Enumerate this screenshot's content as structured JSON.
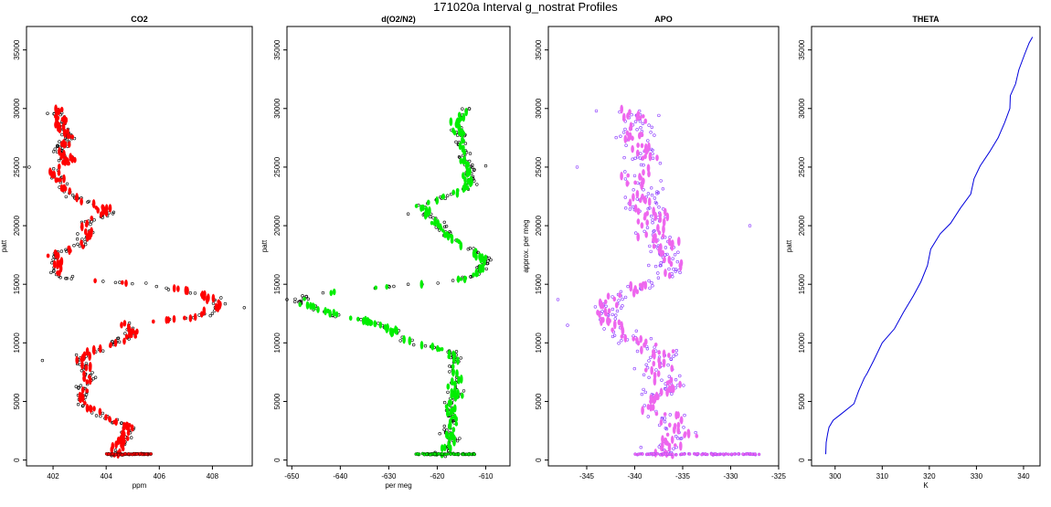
{
  "figure": {
    "title": "171020a   Interval g_nostrat Profiles"
  },
  "chart_data": [
    {
      "type": "scatter",
      "title": "CO2",
      "xlabel": "ppm",
      "ylabel": "patt",
      "xlim": [
        401,
        409.5
      ],
      "ylim": [
        -500,
        37000
      ],
      "xticks": [
        402,
        404,
        406,
        408
      ],
      "yticks": [
        0,
        5000,
        10000,
        15000,
        20000,
        25000,
        30000,
        35000
      ],
      "grid": false,
      "marker_color": "#ff0000",
      "marker_outline": "#000000",
      "profile": [
        [
          0,
          404.2
        ],
        [
          600,
          404.4
        ],
        [
          1000,
          404.3
        ],
        [
          1500,
          404.7
        ],
        [
          2000,
          404.6
        ],
        [
          2500,
          404.9
        ],
        [
          3000,
          404.7
        ],
        [
          3600,
          403.9
        ],
        [
          4200,
          403.6
        ],
        [
          4800,
          403.1
        ],
        [
          5500,
          403.2
        ],
        [
          6200,
          403.0
        ],
        [
          7000,
          403.4
        ],
        [
          7800,
          403.3
        ],
        [
          8500,
          403.0
        ],
        [
          9200,
          403.3
        ],
        [
          9800,
          404.2
        ],
        [
          10400,
          404.8
        ],
        [
          11000,
          405.1
        ],
        [
          11600,
          404.6
        ],
        [
          12200,
          407.5
        ],
        [
          12800,
          408.0
        ],
        [
          13300,
          408.2
        ],
        [
          13800,
          408.0
        ],
        [
          14400,
          407.2
        ],
        [
          15000,
          405.3
        ],
        [
          15500,
          402.5
        ],
        [
          16200,
          402.0
        ],
        [
          16900,
          402.3
        ],
        [
          17500,
          402.0
        ],
        [
          18200,
          403.0
        ],
        [
          18900,
          403.2
        ],
        [
          19600,
          403.4
        ],
        [
          20300,
          403.3
        ],
        [
          21000,
          404.1
        ],
        [
          21700,
          403.8
        ],
        [
          22300,
          402.9
        ],
        [
          23000,
          402.5
        ],
        [
          23700,
          402.2
        ],
        [
          24400,
          402.0
        ],
        [
          25000,
          402.4
        ],
        [
          25700,
          402.6
        ],
        [
          26400,
          402.3
        ],
        [
          27000,
          402.4
        ],
        [
          27700,
          402.6
        ],
        [
          28400,
          402.2
        ],
        [
          29000,
          402.3
        ],
        [
          29600,
          402.1
        ],
        [
          30000,
          402.2
        ]
      ],
      "spread": 0.35,
      "surface_line": {
        "y": 500,
        "x_range": [
          404.0,
          405.7
        ]
      },
      "outliers": [
        [
          25000,
          401.1
        ],
        [
          13000,
          409.2
        ],
        [
          15100,
          405.5
        ],
        [
          8500,
          401.6
        ]
      ]
    },
    {
      "type": "scatter",
      "title": "d(O2/N2)",
      "xlabel": "per meg",
      "ylabel": "patt",
      "xlim": [
        -651,
        -605
      ],
      "ylim": [
        -500,
        37000
      ],
      "xticks": [
        -650,
        -640,
        -630,
        -620,
        -610
      ],
      "yticks": [
        0,
        5000,
        10000,
        15000,
        20000,
        25000,
        30000,
        35000
      ],
      "grid": false,
      "marker_color": "#00ee00",
      "marker_outline": "#000000",
      "profile": [
        [
          0,
          -618
        ],
        [
          600,
          -619
        ],
        [
          1200,
          -618
        ],
        [
          1800,
          -617
        ],
        [
          2500,
          -618
        ],
        [
          3200,
          -617
        ],
        [
          4000,
          -617
        ],
        [
          4800,
          -618
        ],
        [
          5500,
          -616
        ],
        [
          6300,
          -617
        ],
        [
          7000,
          -616
        ],
        [
          7800,
          -617
        ],
        [
          8500,
          -616
        ],
        [
          9300,
          -617
        ],
        [
          10000,
          -626
        ],
        [
          10600,
          -627
        ],
        [
          11200,
          -630
        ],
        [
          11800,
          -634
        ],
        [
          12400,
          -641
        ],
        [
          13000,
          -645
        ],
        [
          13500,
          -649
        ],
        [
          14000,
          -647
        ],
        [
          14600,
          -636
        ],
        [
          15200,
          -617
        ],
        [
          15800,
          -612
        ],
        [
          16400,
          -611
        ],
        [
          17000,
          -610
        ],
        [
          17600,
          -612
        ],
        [
          18200,
          -614
        ],
        [
          18900,
          -617
        ],
        [
          19600,
          -619
        ],
        [
          20300,
          -620
        ],
        [
          21000,
          -622
        ],
        [
          21700,
          -624
        ],
        [
          22300,
          -619
        ],
        [
          23000,
          -615
        ],
        [
          23700,
          -613
        ],
        [
          24400,
          -614
        ],
        [
          25000,
          -613
        ],
        [
          25700,
          -615
        ],
        [
          26400,
          -614
        ],
        [
          27000,
          -615
        ],
        [
          27700,
          -615
        ],
        [
          28400,
          -616
        ],
        [
          29000,
          -616
        ],
        [
          29600,
          -615
        ],
        [
          30000,
          -614
        ]
      ],
      "spread": 1.6,
      "surface_line": {
        "y": 500,
        "x_range": [
          -625,
          -612
        ]
      },
      "outliers": [
        [
          15000,
          -626
        ],
        [
          25100,
          -610
        ],
        [
          13700,
          -651
        ],
        [
          21000,
          -626
        ]
      ]
    },
    {
      "type": "scatter",
      "title": "APO",
      "xlabel": "",
      "ylabel": "approx. per meg",
      "xlim": [
        -349,
        -325
      ],
      "ylim": [
        -500,
        37000
      ],
      "xticks": [
        -345,
        -340,
        -335,
        -330,
        -325
      ],
      "yticks": [
        0,
        5000,
        10000,
        15000,
        20000,
        25000,
        30000,
        35000
      ],
      "grid": false,
      "marker_color": "#ee66ee",
      "marker_outline": "#8833ff",
      "profile": [
        [
          0,
          -336
        ],
        [
          800,
          -337
        ],
        [
          1600,
          -336
        ],
        [
          2400,
          -335
        ],
        [
          3200,
          -336
        ],
        [
          4000,
          -337
        ],
        [
          4800,
          -338
        ],
        [
          5600,
          -337
        ],
        [
          6400,
          -336
        ],
        [
          7200,
          -337
        ],
        [
          8000,
          -338
        ],
        [
          8800,
          -337
        ],
        [
          9600,
          -338
        ],
        [
          10400,
          -340
        ],
        [
          11200,
          -342
        ],
        [
          12000,
          -343
        ],
        [
          12800,
          -343
        ],
        [
          13600,
          -342
        ],
        [
          14400,
          -341
        ],
        [
          15200,
          -339
        ],
        [
          16000,
          -336
        ],
        [
          16800,
          -336
        ],
        [
          17600,
          -337
        ],
        [
          18400,
          -337
        ],
        [
          19200,
          -338
        ],
        [
          20000,
          -338
        ],
        [
          20800,
          -338
        ],
        [
          21600,
          -339
        ],
        [
          22400,
          -339
        ],
        [
          23200,
          -339
        ],
        [
          24000,
          -340
        ],
        [
          24800,
          -340
        ],
        [
          25600,
          -339
        ],
        [
          26400,
          -339
        ],
        [
          27200,
          -340
        ],
        [
          28000,
          -340
        ],
        [
          28800,
          -340
        ],
        [
          29600,
          -340
        ],
        [
          30000,
          -341
        ]
      ],
      "spread": 2.3,
      "surface_line": {
        "y": 500,
        "x_range": [
          -340,
          -327
        ]
      },
      "outliers": [
        [
          11500,
          -347
        ],
        [
          13700,
          -348
        ],
        [
          25000,
          -346
        ],
        [
          20000,
          -328
        ],
        [
          29800,
          -344
        ]
      ]
    },
    {
      "type": "line",
      "title": "THETA",
      "xlabel": "K",
      "ylabel": "patt",
      "xlim": [
        295,
        343.5
      ],
      "ylim": [
        -500,
        37000
      ],
      "xticks": [
        300,
        310,
        320,
        330,
        340
      ],
      "yticks": [
        0,
        5000,
        10000,
        15000,
        20000,
        25000,
        30000,
        35000
      ],
      "grid": false,
      "line_color": "#0000dd",
      "points": [
        [
          298.0,
          500
        ],
        [
          298.1,
          1500
        ],
        [
          298.4,
          2200
        ],
        [
          298.7,
          2800
        ],
        [
          299.6,
          3400
        ],
        [
          301.5,
          4000
        ],
        [
          304.0,
          4800
        ],
        [
          305.0,
          5900
        ],
        [
          306.2,
          7000
        ],
        [
          306.8,
          7400
        ],
        [
          308.2,
          8500
        ],
        [
          310.0,
          10000
        ],
        [
          312.6,
          11200
        ],
        [
          314.5,
          12600
        ],
        [
          316.6,
          14000
        ],
        [
          318.2,
          15200
        ],
        [
          319.6,
          16600
        ],
        [
          320.3,
          18000
        ],
        [
          322.3,
          19300
        ],
        [
          324.5,
          20200
        ],
        [
          326.6,
          21500
        ],
        [
          328.8,
          22700
        ],
        [
          329.5,
          24000
        ],
        [
          330.8,
          25100
        ],
        [
          332.8,
          26300
        ],
        [
          334.6,
          27500
        ],
        [
          336.0,
          28800
        ],
        [
          337.1,
          30000
        ],
        [
          337.2,
          31100
        ],
        [
          338.3,
          32100
        ],
        [
          339.0,
          33300
        ],
        [
          340.3,
          34700
        ],
        [
          341.2,
          35600
        ],
        [
          341.9,
          36100
        ]
      ]
    }
  ]
}
